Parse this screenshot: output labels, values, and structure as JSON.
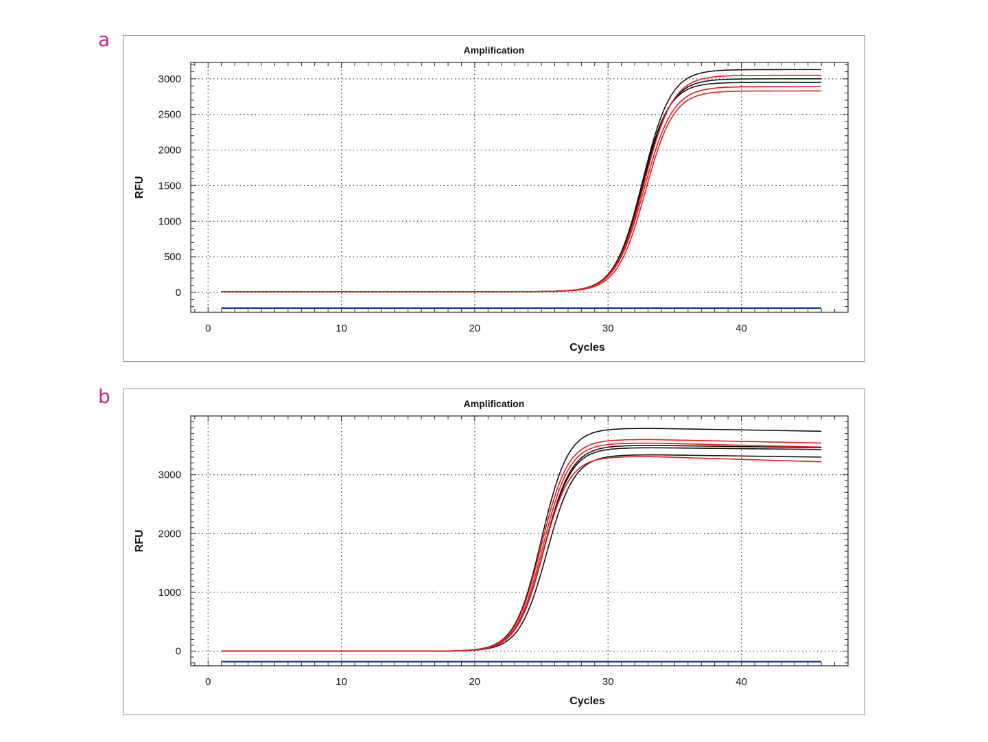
{
  "panels": [
    {
      "letter": "a"
    },
    {
      "letter": "b"
    }
  ],
  "colors": {
    "black_series": "#111111",
    "red_series": "#e31a1c",
    "baseline": "#1a3f8f",
    "panel_letter": "#c0287e"
  },
  "chart_data": [
    {
      "type": "line",
      "title": "Amplification",
      "xlabel": "Cycles",
      "ylabel": "RFU",
      "xlim": [
        -1.3,
        48
      ],
      "ylim": [
        -280,
        3230
      ],
      "xticks": [
        0,
        10,
        20,
        30,
        40
      ],
      "yticks": [
        0,
        500,
        1000,
        1500,
        2000,
        2500,
        3000
      ],
      "grid": true,
      "legend": "none",
      "baseline": {
        "y": -220,
        "x_start": 1,
        "x_end": 46
      },
      "curves": {
        "x_start": 1,
        "x_end": 46,
        "baseline_y": 10
      },
      "series": [
        {
          "color": "black",
          "plateau": 3130,
          "midpoint": 32.6,
          "slope": 0.95
        },
        {
          "color": "black",
          "plateau": 3000,
          "midpoint": 32.6,
          "slope": 0.95
        },
        {
          "color": "black",
          "plateau": 2950,
          "midpoint": 32.5,
          "slope": 0.97
        },
        {
          "color": "red",
          "plateau": 3050,
          "midpoint": 32.7,
          "slope": 0.93
        },
        {
          "color": "red",
          "plateau": 2890,
          "midpoint": 32.7,
          "slope": 0.93
        },
        {
          "color": "red",
          "plateau": 2830,
          "midpoint": 32.8,
          "slope": 0.95
        }
      ]
    },
    {
      "type": "line",
      "title": "Amplification",
      "xlabel": "Cycles",
      "ylabel": "RFU",
      "xlim": [
        -1.3,
        48
      ],
      "ylim": [
        -250,
        4000
      ],
      "xticks": [
        0,
        10,
        20,
        30,
        40
      ],
      "yticks": [
        0,
        1000,
        2000,
        3000
      ],
      "grid": true,
      "legend": "none",
      "baseline": {
        "y": -180,
        "x_start": 1,
        "x_end": 46
      },
      "curves": {
        "x_start": 1,
        "x_end": 46,
        "baseline_y": 0
      },
      "series": [
        {
          "color": "black",
          "plateau": 3790,
          "midpoint": 25.0,
          "slope": 1.0,
          "drift": -50
        },
        {
          "color": "black",
          "plateau": 3500,
          "midpoint": 25.2,
          "slope": 0.98,
          "drift": -40
        },
        {
          "color": "black",
          "plateau": 3460,
          "midpoint": 25.2,
          "slope": 0.98,
          "drift": -30
        },
        {
          "color": "black",
          "plateau": 3340,
          "midpoint": 25.4,
          "slope": 0.98,
          "drift": -40
        },
        {
          "color": "red",
          "plateau": 3600,
          "midpoint": 25.0,
          "slope": 1.0,
          "drift": -60
        },
        {
          "color": "red",
          "plateau": 3540,
          "midpoint": 25.1,
          "slope": 1.0,
          "drift": -70
        },
        {
          "color": "red",
          "plateau": 3310,
          "midpoint": 25.1,
          "slope": 1.0,
          "drift": -90
        }
      ]
    }
  ]
}
